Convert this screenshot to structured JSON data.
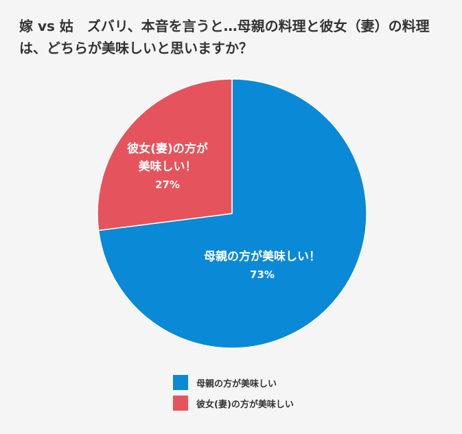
{
  "chart_data": {
    "type": "pie",
    "title": "嫁 vs 姑　ズバリ、本音を言うと…母親の料理と彼女（妻）の料理は、どちらが美味しいと思いますか？",
    "categories": [
      "母親の方が美味しい",
      "彼女(妻)の方が美味しい"
    ],
    "values": [
      73,
      27
    ],
    "unit": "%",
    "slice_labels": [
      {
        "lines": [
          "母親の方が美味しい！"
        ],
        "value_text": "73%"
      },
      {
        "lines": [
          "彼女(妻)の方が",
          "美味しい！"
        ],
        "value_text": "27%"
      }
    ],
    "colors": [
      "#0a89d6",
      "#e5545c"
    ],
    "legend": {
      "placement": "bottom",
      "entries": [
        "母親の方が美味しい",
        "彼女(妻)の方が美味しい"
      ]
    }
  }
}
